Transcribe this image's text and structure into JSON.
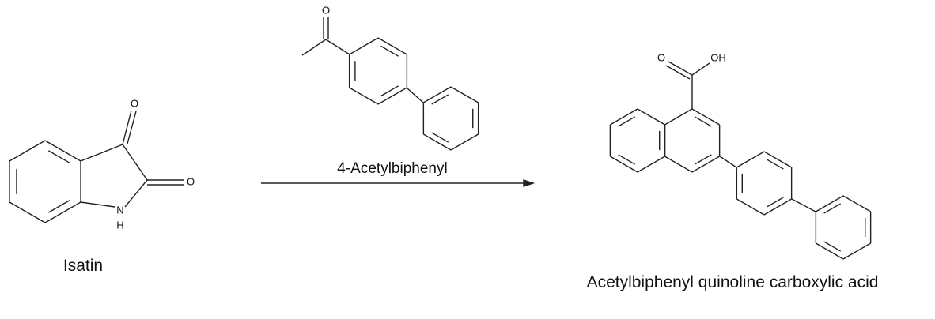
{
  "reactant": {
    "name": "Isatin",
    "atoms": [
      "O",
      "O",
      "N",
      "H"
    ]
  },
  "reagent": {
    "name": "4-Acetylbiphenyl",
    "atoms": [
      "O"
    ]
  },
  "product": {
    "name": "Acetylbiphenyl quinoline carboxylic acid",
    "atoms": [
      "O",
      "OH"
    ]
  }
}
